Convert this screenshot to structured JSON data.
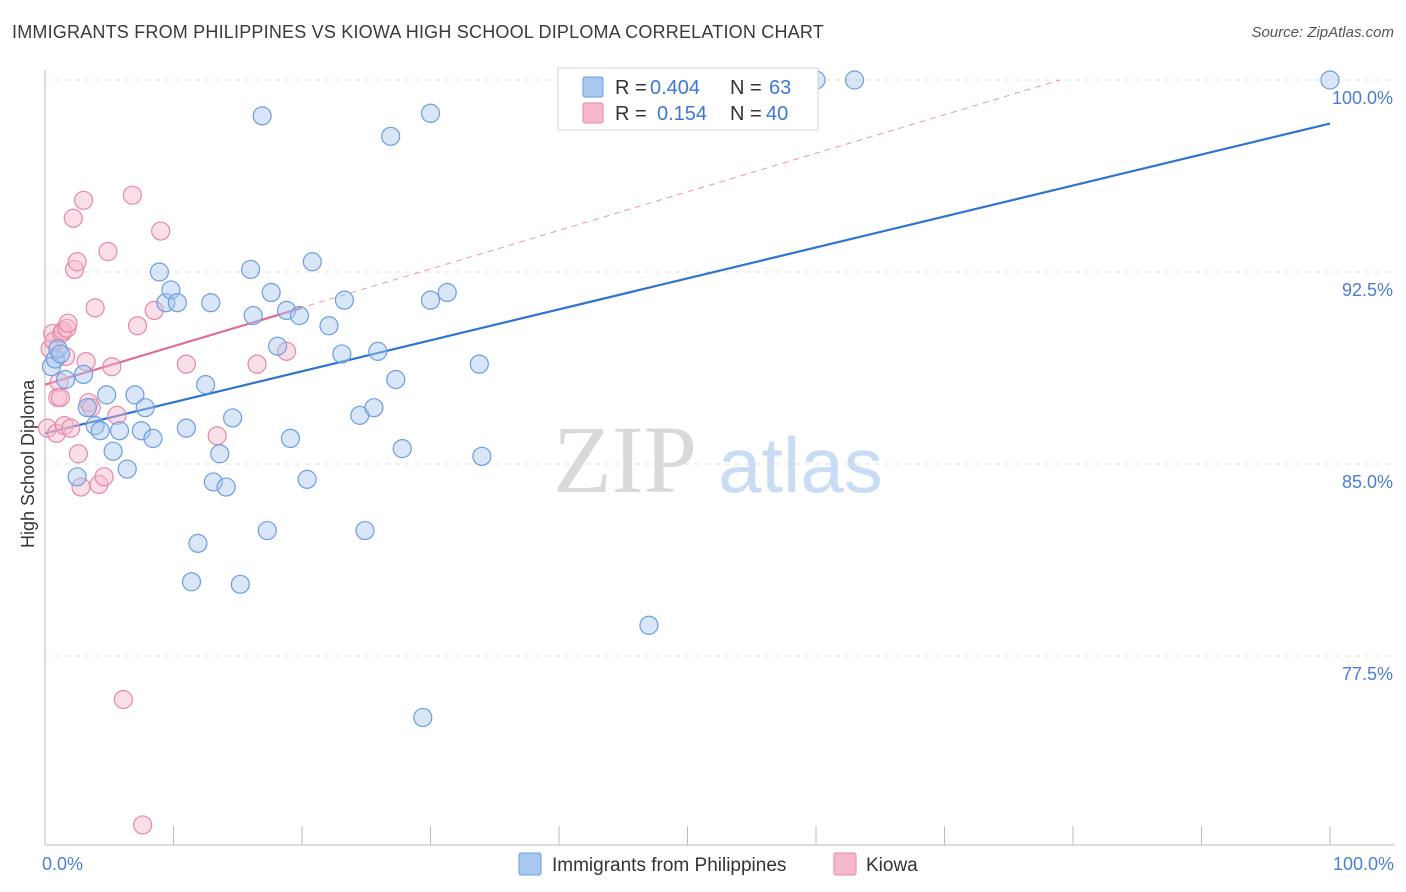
{
  "header": {
    "title": "IMMIGRANTS FROM PHILIPPINES VS KIOWA HIGH SCHOOL DIPLOMA CORRELATION CHART",
    "source": "Source: ZipAtlas.com"
  },
  "watermark": {
    "zip": "ZIP",
    "atlas": "atlas"
  },
  "colors": {
    "blue_fill": "#a9c8f0",
    "blue_stroke": "#6d9de0",
    "blue_line": "#2f74d0",
    "pink_fill": "#f7b8cc",
    "pink_stroke": "#e58aa6",
    "pink_line": "#e06b94",
    "grid": "#dddddd",
    "tick_label": "#4a7fd4"
  },
  "legend": {
    "r_label": "R =",
    "n_label": "N =",
    "rows": [
      {
        "r": "0.404",
        "n": "63"
      },
      {
        "r": "0.154",
        "n": "40"
      }
    ]
  },
  "chart_data": {
    "type": "scatter",
    "title": "IMMIGRANTS FROM PHILIPPINES VS KIOWA HIGH SCHOOL DIPLOMA CORRELATION CHART",
    "xlabel": "",
    "ylabel": "High School Diploma",
    "xlim": [
      0,
      100
    ],
    "ylim": [
      70.5,
      101.5
    ],
    "x_tick_labels": [
      "0.0%",
      "100.0%"
    ],
    "y_ticks": [
      77.5,
      85.0,
      92.5,
      100.0
    ],
    "y_tick_labels": [
      "77.5%",
      "85.0%",
      "92.5%",
      "100.0%"
    ],
    "grid": true,
    "legend_position": "top-center",
    "series": [
      {
        "name": "Immigrants from Philippines",
        "color": "blue",
        "r": 0.404,
        "n": 63,
        "trend": {
          "x": [
            0,
            100
          ],
          "y": [
            86.2,
            98.3
          ],
          "style": "solid"
        },
        "points": [
          [
            0.5,
            88.8
          ],
          [
            0.8,
            89.1
          ],
          [
            1.0,
            89.5
          ],
          [
            1.2,
            89.3
          ],
          [
            1.6,
            88.3
          ],
          [
            2.5,
            84.5
          ],
          [
            3.0,
            88.5
          ],
          [
            3.3,
            87.2
          ],
          [
            3.9,
            86.5
          ],
          [
            4.3,
            86.3
          ],
          [
            4.8,
            87.7
          ],
          [
            5.3,
            85.5
          ],
          [
            5.8,
            86.3
          ],
          [
            6.4,
            84.8
          ],
          [
            7.0,
            87.7
          ],
          [
            7.5,
            86.3
          ],
          [
            7.8,
            87.2
          ],
          [
            8.4,
            86.0
          ],
          [
            8.9,
            92.5
          ],
          [
            9.4,
            91.3
          ],
          [
            9.8,
            91.8
          ],
          [
            10.3,
            91.3
          ],
          [
            11.0,
            86.4
          ],
          [
            11.4,
            80.4
          ],
          [
            11.9,
            81.9
          ],
          [
            12.5,
            88.1
          ],
          [
            12.9,
            91.3
          ],
          [
            13.1,
            84.3
          ],
          [
            13.6,
            85.4
          ],
          [
            14.1,
            84.1
          ],
          [
            14.6,
            86.8
          ],
          [
            15.2,
            80.3
          ],
          [
            16.0,
            92.6
          ],
          [
            16.2,
            90.8
          ],
          [
            16.9,
            98.6
          ],
          [
            17.3,
            82.4
          ],
          [
            17.6,
            91.7
          ],
          [
            18.1,
            89.6
          ],
          [
            18.8,
            91.0
          ],
          [
            19.1,
            86.0
          ],
          [
            19.8,
            90.8
          ],
          [
            20.4,
            84.4
          ],
          [
            20.8,
            92.9
          ],
          [
            22.1,
            90.4
          ],
          [
            23.1,
            89.3
          ],
          [
            23.3,
            91.4
          ],
          [
            24.5,
            86.9
          ],
          [
            24.9,
            82.4
          ],
          [
            25.6,
            87.2
          ],
          [
            25.9,
            89.4
          ],
          [
            26.9,
            97.8
          ],
          [
            27.3,
            88.3
          ],
          [
            27.8,
            85.6
          ],
          [
            29.4,
            75.1
          ],
          [
            30.0,
            98.7
          ],
          [
            30.0,
            91.4
          ],
          [
            31.3,
            91.7
          ],
          [
            33.8,
            88.9
          ],
          [
            34.0,
            85.3
          ],
          [
            47.0,
            78.7
          ],
          [
            60.0,
            100.0
          ],
          [
            63.0,
            100.0
          ],
          [
            100.0,
            100.0
          ]
        ]
      },
      {
        "name": "Kiowa",
        "color": "pink",
        "r": 0.154,
        "n": 40,
        "trend": {
          "x": [
            0,
            20
          ],
          "y": [
            88.1,
            91.1
          ],
          "style": "solid",
          "extension": {
            "x": [
              0,
              79
            ],
            "y": [
              88.1,
              100.0
            ],
            "style": "dashed"
          }
        },
        "points": [
          [
            0.2,
            86.4
          ],
          [
            0.4,
            89.5
          ],
          [
            0.6,
            90.1
          ],
          [
            0.7,
            89.8
          ],
          [
            0.9,
            86.2
          ],
          [
            1.0,
            87.6
          ],
          [
            1.1,
            88.2
          ],
          [
            1.2,
            87.6
          ],
          [
            1.3,
            90.1
          ],
          [
            1.4,
            90.2
          ],
          [
            1.5,
            86.5
          ],
          [
            1.6,
            89.2
          ],
          [
            1.7,
            90.3
          ],
          [
            1.8,
            90.5
          ],
          [
            2.0,
            86.4
          ],
          [
            2.2,
            94.6
          ],
          [
            2.3,
            92.6
          ],
          [
            2.5,
            92.9
          ],
          [
            2.6,
            85.4
          ],
          [
            2.8,
            84.1
          ],
          [
            3.0,
            95.3
          ],
          [
            3.2,
            89.0
          ],
          [
            3.4,
            87.4
          ],
          [
            3.6,
            87.2
          ],
          [
            3.9,
            91.1
          ],
          [
            4.2,
            84.2
          ],
          [
            4.6,
            84.5
          ],
          [
            4.9,
            93.3
          ],
          [
            5.2,
            88.8
          ],
          [
            5.6,
            86.9
          ],
          [
            6.1,
            75.8
          ],
          [
            6.8,
            95.5
          ],
          [
            7.2,
            90.4
          ],
          [
            7.6,
            70.9
          ],
          [
            8.5,
            91.0
          ],
          [
            9.0,
            94.1
          ],
          [
            11.0,
            88.9
          ],
          [
            13.4,
            86.1
          ],
          [
            16.5,
            88.9
          ],
          [
            18.8,
            89.4
          ]
        ]
      }
    ]
  }
}
